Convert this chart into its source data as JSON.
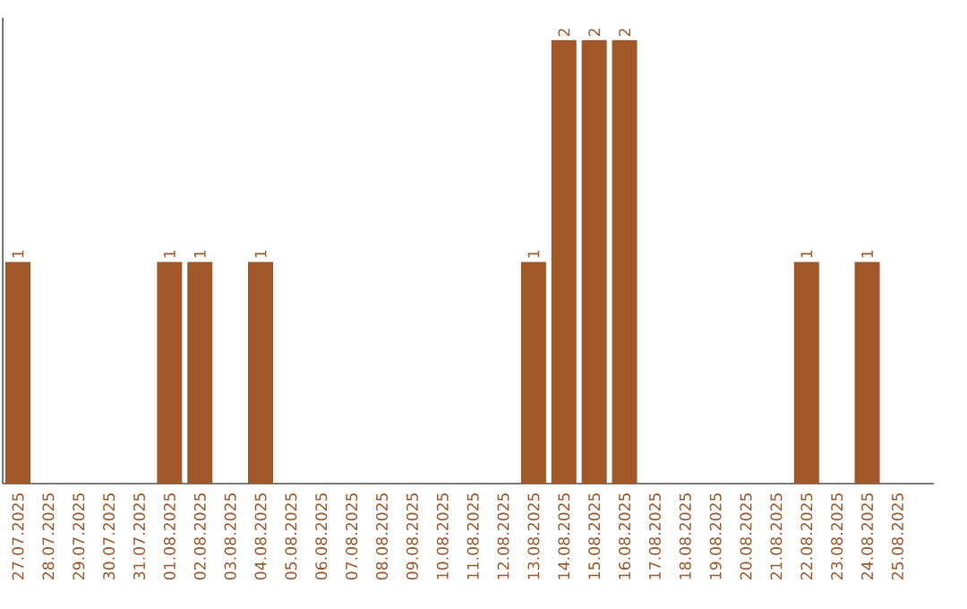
{
  "chart_data": {
    "type": "bar",
    "categories": [
      "27.07.2025",
      "28.07.2025",
      "29.07.2025",
      "30.07.2025",
      "31.07.2025",
      "01.08.2025",
      "02.08.2025",
      "03.08.2025",
      "04.08.2025",
      "05.08.2025",
      "06.08.2025",
      "07.08.2025",
      "08.08.2025",
      "09.08.2025",
      "10.08.2025",
      "11.08.2025",
      "12.08.2025",
      "13.08.2025",
      "14.08.2025",
      "15.08.2025",
      "16.08.2025",
      "17.08.2025",
      "18.08.2025",
      "19.08.2025",
      "20.08.2025",
      "21.08.2025",
      "22.08.2025",
      "23.08.2025",
      "24.08.2025",
      "25.08.2025"
    ],
    "values": [
      1,
      0,
      0,
      0,
      0,
      1,
      1,
      0,
      1,
      0,
      0,
      0,
      0,
      0,
      0,
      0,
      0,
      1,
      2,
      2,
      2,
      0,
      0,
      0,
      0,
      0,
      1,
      0,
      1,
      0
    ],
    "value_labels": [
      "1",
      null,
      null,
      null,
      null,
      "1",
      "1",
      null,
      "1",
      null,
      null,
      null,
      null,
      null,
      null,
      null,
      null,
      "1",
      "2",
      "2",
      "2",
      null,
      null,
      null,
      null,
      null,
      "1",
      null,
      "1",
      null
    ],
    "color": "#a0582a",
    "ylim": [
      0,
      2.1
    ],
    "tick_labels": "x",
    "grid": false
  }
}
